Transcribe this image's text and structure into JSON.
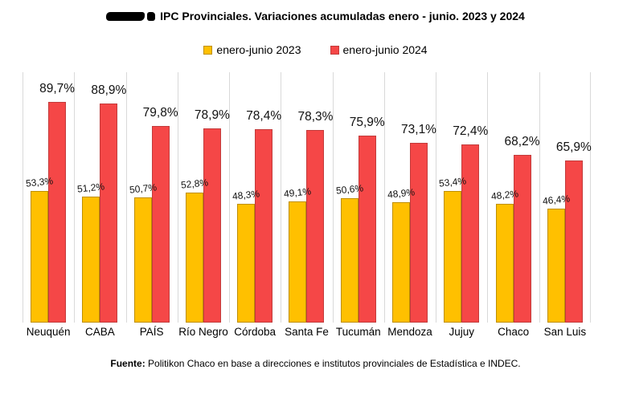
{
  "title": {
    "text": "IPC Provinciales. Variaciones acumuladas enero - junio. 2023 y 2024",
    "redacted_prefix": true
  },
  "footer": {
    "label": "Fuente:",
    "text": " Politikon Chaco en base a direcciones e institutos provinciales de Estadística e INDEC."
  },
  "chart_data": {
    "type": "bar",
    "title": "IPC Provinciales. Variaciones acumuladas enero - junio. 2023 y 2024",
    "categories": [
      "Neuquén",
      "CABA",
      "PAÍS",
      "Río Negro",
      "Córdoba",
      "Santa Fe",
      "Tucumán",
      "Mendoza",
      "Jujuy",
      "Chaco",
      "San Luis"
    ],
    "series": [
      {
        "name": "enero-junio 2023",
        "color": "#FFC000",
        "border_color": "#BF8F00",
        "values": [
          53.3,
          51.2,
          50.7,
          52.8,
          48.3,
          49.1,
          50.6,
          48.9,
          53.4,
          48.2,
          46.4
        ],
        "labels": [
          "53,3%",
          "51,2%",
          "50,7%",
          "52,8%",
          "48,3%",
          "49,1%",
          "50,6%",
          "48,9%",
          "53,4%",
          "48,2%",
          "46,4%"
        ]
      },
      {
        "name": "enero-junio 2024",
        "color": "#F54747",
        "border_color": "#C23B3B",
        "values": [
          89.7,
          88.9,
          79.8,
          78.9,
          78.4,
          78.3,
          75.9,
          73.1,
          72.4,
          68.2,
          65.9
        ],
        "labels": [
          "89,7%",
          "88,9%",
          "79,8%",
          "78,9%",
          "78,4%",
          "78,3%",
          "75,9%",
          "73,1%",
          "72,4%",
          "68,2%",
          "65,9%"
        ]
      }
    ],
    "ylim": [
      0,
      100
    ],
    "y_axis_visible": false,
    "gridlines": "vertical category separators",
    "legend_position": "top",
    "gridline_color": "#d9d9d9"
  }
}
